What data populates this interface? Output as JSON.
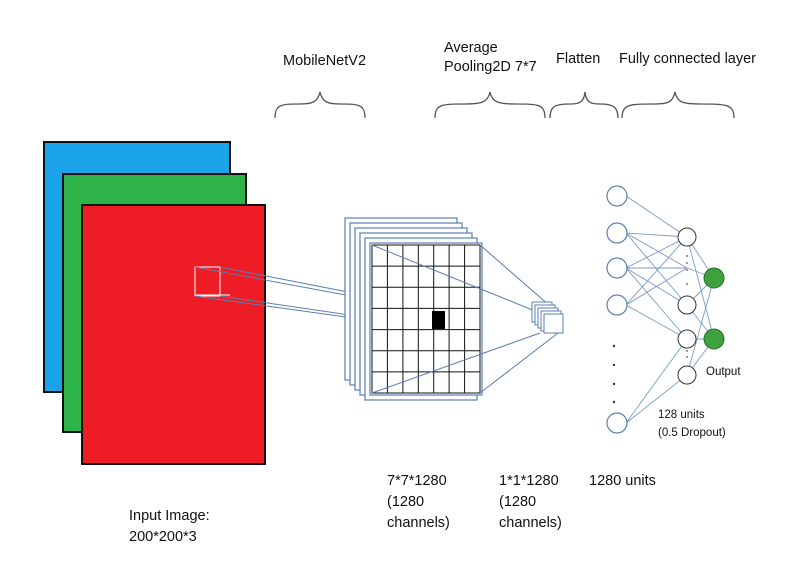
{
  "labels": {
    "mobilenet": "MobileNetV2",
    "avgpool_line1": "Average",
    "avgpool_line2": "Pooling2D 7*7",
    "flatten": "Flatten",
    "fc_layer": "Fully connected layer",
    "input_line1": "Input Image:",
    "input_line2": "200*200*3",
    "feature_line1": "7*7*1280",
    "feature_line2": "(1280",
    "feature_line3": "channels)",
    "pooled_line1": "1*1*1280",
    "pooled_line2": "(1280",
    "pooled_line3": "channels)",
    "flatten_units": "1280 units",
    "hidden_line1": "128 units",
    "hidden_line2": "(0.5 Dropout)",
    "output": "Output"
  },
  "colors": {
    "channel_blue": "#1aa3e8",
    "channel_green": "#2db34a",
    "channel_red": "#ee1c25",
    "grid_stroke": "#5b7fb0",
    "output_node": "#3fa03f",
    "connection": "#7a9cc6"
  }
}
